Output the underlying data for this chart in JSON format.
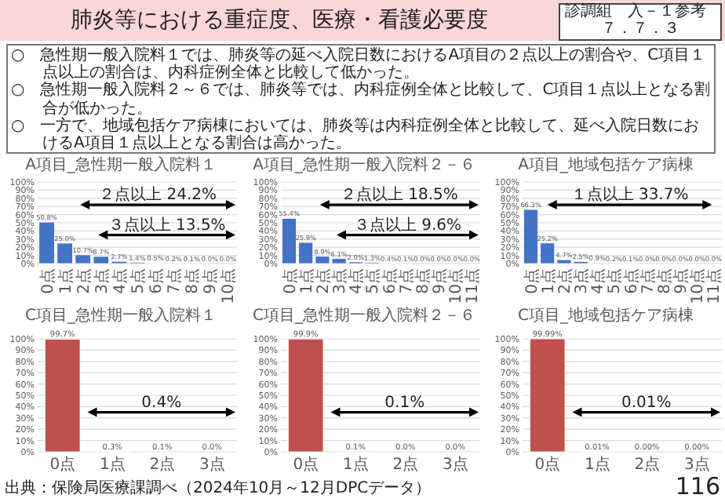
{
  "chart_data": [
    {
      "type": "other",
      "title": "肺炎等における重症度、医療・看護必要度",
      "annotations": [
        "診調組　入－１参考",
        "７．７．３",
        "○　急性期一般入院料１では、肺炎等の延べ入院日数におけるA項目の２点以上の割合や、C項目１点以上の割合は、内科症例全体と比較して低かった。",
        "○　急性期一般入院料２～６では、肺炎等では、内科症例全体と比較して、C項目１点以上となる割合が低かった。",
        "○　一方で、地域包括ケア病棟においては、肺炎等は内科症例全体と比較して、延べ入院日数におけるA項目１点以上となる割合は高かった。",
        "出典：保険局医療課調べ（2024年10月～12月DPCデータ）",
        "116"
      ]
    },
    {
      "type": "bar",
      "title": "A項目_急性期一般入院料１",
      "categories": [
        "0点",
        "1点",
        "2点",
        "3点",
        "4点",
        "5点",
        "6点",
        "7点",
        "8点",
        "9点",
        "10点"
      ],
      "values": [
        50.8,
        25.0,
        10.7,
        8.7,
        2.7,
        1.4,
        0.5,
        0.2,
        0.1,
        0.0,
        0.0
      ],
      "value_labels": [
        "50.8%",
        "25.0%",
        "10.7%",
        "8.7%",
        "2.7%",
        "1.4%",
        "0.5%",
        "0.2%",
        "0.1%",
        "0.0%",
        "0.0%"
      ],
      "color": "#4472c4",
      "ylim": [
        0,
        100
      ],
      "yticks": [
        {
          "value": 0,
          "label": "0%"
        },
        {
          "value": 10,
          "label": "10%"
        },
        {
          "value": 20,
          "label": "20%"
        },
        {
          "value": 30,
          "label": "30%"
        },
        {
          "value": 40,
          "label": "40%"
        },
        {
          "value": 50,
          "label": "50%"
        },
        {
          "value": 60,
          "label": "60%"
        },
        {
          "value": 70,
          "label": "70%"
        },
        {
          "value": 80,
          "label": "80%"
        },
        {
          "value": 90,
          "label": "90%"
        },
        {
          "value": 100,
          "label": "100%"
        }
      ],
      "grid": "y",
      "annotations": [
        {
          "text": "２点以上 24.2%",
          "x": "2点",
          "y": 72
        },
        {
          "text": "３点以上 13.5%",
          "x": "3点",
          "y": 35
        }
      ]
    },
    {
      "type": "bar",
      "title": "A項目_急性期一般入院料２－６",
      "categories": [
        "0点",
        "1点",
        "2点",
        "3点",
        "4点",
        "5点",
        "6点",
        "7点",
        "8点",
        "9点",
        "10点",
        "11点"
      ],
      "values": [
        55.4,
        25.9,
        8.9,
        6.1,
        2.0,
        1.3,
        0.4,
        0.1,
        0.0,
        0.0,
        0.0,
        0.0
      ],
      "value_labels": [
        "55.4%",
        "25.9%",
        "8.9%",
        "6.1%",
        "2.0%",
        "1.3%",
        "0.4%",
        "0.1%",
        "0.0%",
        "0.0%",
        "0.0%",
        "0.0%"
      ],
      "color": "#4472c4",
      "ylim": [
        0,
        100
      ],
      "yticks": [
        {
          "value": 0,
          "label": "0%"
        },
        {
          "value": 10,
          "label": "10%"
        },
        {
          "value": 20,
          "label": "20%"
        },
        {
          "value": 30,
          "label": "30%"
        },
        {
          "value": 40,
          "label": "40%"
        },
        {
          "value": 50,
          "label": "50%"
        },
        {
          "value": 60,
          "label": "60%"
        },
        {
          "value": 70,
          "label": "70%"
        },
        {
          "value": 80,
          "label": "80%"
        },
        {
          "value": 90,
          "label": "90%"
        },
        {
          "value": 100,
          "label": "100%"
        }
      ],
      "grid": "y",
      "annotations": [
        {
          "text": "２点以上 18.5%",
          "x": "2点",
          "y": 72
        },
        {
          "text": "３点以上 9.6%",
          "x": "3点",
          "y": 35
        }
      ]
    },
    {
      "type": "bar",
      "title": "A項目_地域包括ケア病棟",
      "categories": [
        "0点",
        "1点",
        "2点",
        "3点",
        "4点",
        "5点",
        "6点",
        "7点",
        "8点",
        "9点",
        "10点",
        "11点"
      ],
      "values": [
        66.3,
        25.2,
        4.7,
        2.5,
        0.9,
        0.2,
        0.1,
        0.0,
        0.0,
        0.0,
        0.0,
        0.0
      ],
      "value_labels": [
        "66.3%",
        "25.2%",
        "4.7%",
        "2.5%",
        "0.9%",
        "0.2%",
        "0.1%",
        "0.0%",
        "0.0%",
        "0.0%",
        "0.0%",
        "0.0%"
      ],
      "color": "#4472c4",
      "ylim": [
        0,
        100
      ],
      "yticks": [
        {
          "value": 0,
          "label": "0%"
        },
        {
          "value": 10,
          "label": "10%"
        },
        {
          "value": 20,
          "label": "20%"
        },
        {
          "value": 30,
          "label": "30%"
        },
        {
          "value": 40,
          "label": "40%"
        },
        {
          "value": 50,
          "label": "50%"
        },
        {
          "value": 60,
          "label": "60%"
        },
        {
          "value": 70,
          "label": "70%"
        },
        {
          "value": 80,
          "label": "80%"
        },
        {
          "value": 90,
          "label": "90%"
        },
        {
          "value": 100,
          "label": "100%"
        }
      ],
      "grid": "y",
      "annotations": [
        "１点以上 33.7%"
      ]
    },
    {
      "type": "bar",
      "title": "C項目_急性期一般入院料１",
      "categories": [
        "0点",
        "1点",
        "2点",
        "3点"
      ],
      "values": [
        99.7,
        0.3,
        0.1,
        0.0
      ],
      "value_labels": [
        "99.7%",
        "0.3%",
        "0.1%",
        "0.0%"
      ],
      "color": "#c0504d",
      "ylim": [
        0,
        100
      ],
      "yticks": [
        {
          "value": 0,
          "label": "0%"
        },
        {
          "value": 10,
          "label": "10%"
        },
        {
          "value": 20,
          "label": "20%"
        },
        {
          "value": 30,
          "label": "30%"
        },
        {
          "value": 40,
          "label": "40%"
        },
        {
          "value": 50,
          "label": "50%"
        },
        {
          "value": 60,
          "label": "60%"
        },
        {
          "value": 70,
          "label": "70%"
        },
        {
          "value": 80,
          "label": "80%"
        },
        {
          "value": 90,
          "label": "90%"
        },
        {
          "value": 100,
          "label": "100%"
        }
      ],
      "grid": "y",
      "annotations": [
        "0.4%"
      ]
    },
    {
      "type": "bar",
      "title": "C項目_急性期一般入院料２－６",
      "categories": [
        "0点",
        "1点",
        "2点",
        "3点"
      ],
      "values": [
        99.9,
        0.1,
        0.0,
        0.0
      ],
      "value_labels": [
        "99.9%",
        "0.1%",
        "0.0%",
        "0.0%"
      ],
      "color": "#c0504d",
      "ylim": [
        0,
        100
      ],
      "yticks": [
        {
          "value": 0,
          "label": "0%"
        },
        {
          "value": 10,
          "label": "10%"
        },
        {
          "value": 20,
          "label": "20%"
        },
        {
          "value": 30,
          "label": "30%"
        },
        {
          "value": 40,
          "label": "40%"
        },
        {
          "value": 50,
          "label": "50%"
        },
        {
          "value": 60,
          "label": "60%"
        },
        {
          "value": 70,
          "label": "70%"
        },
        {
          "value": 80,
          "label": "80%"
        },
        {
          "value": 90,
          "label": "90%"
        },
        {
          "value": 100,
          "label": "100%"
        }
      ],
      "grid": "y",
      "annotations": [
        "0.1%"
      ]
    },
    {
      "type": "bar",
      "title": "C項目_地域包括ケア病棟",
      "categories": [
        "0点",
        "1点",
        "2点",
        "3点"
      ],
      "values": [
        99.99,
        0.01,
        0.0,
        0.0
      ],
      "value_labels": [
        "99.99%",
        "0.01%",
        "0.00%",
        "0.00%"
      ],
      "color": "#c0504d",
      "ylim": [
        0,
        100
      ],
      "yticks": [
        {
          "value": 0,
          "label": "0%"
        },
        {
          "value": 10,
          "label": "10%"
        },
        {
          "value": 20,
          "label": "20%"
        },
        {
          "value": 30,
          "label": "30%"
        },
        {
          "value": 40,
          "label": "40%"
        },
        {
          "value": 50,
          "label": "50%"
        },
        {
          "value": 60,
          "label": "60%"
        },
        {
          "value": 70,
          "label": "70%"
        },
        {
          "value": 80,
          "label": "80%"
        },
        {
          "value": 90,
          "label": "90%"
        },
        {
          "value": 100,
          "label": "100%"
        }
      ],
      "grid": "y",
      "annotations": [
        "0.01%"
      ]
    }
  ]
}
